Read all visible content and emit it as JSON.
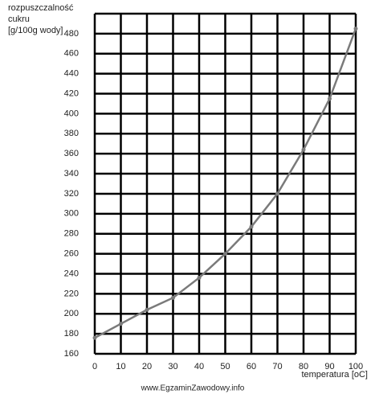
{
  "chart_data": {
    "type": "line",
    "ylabel": [
      "rozpuszczalność",
      "cukru",
      "[g/100g wody]"
    ],
    "xlabel": "temperatura [oC]",
    "watermark": "www.EgzaminZawodowy.info",
    "x": [
      0,
      10,
      20,
      30,
      40,
      50,
      60,
      70,
      80,
      90,
      100
    ],
    "series": [
      {
        "color": "#7a7a7a",
        "values": [
          176,
          190,
          204,
          216,
          236,
          260,
          287,
          320,
          364,
          415,
          485
        ]
      }
    ],
    "xlim": [
      0,
      100
    ],
    "xticks": [
      0,
      10,
      20,
      30,
      40,
      50,
      60,
      70,
      80,
      90,
      100
    ],
    "ylim": [
      160,
      500
    ],
    "yticks": [
      160,
      180,
      200,
      220,
      240,
      260,
      280,
      300,
      320,
      340,
      360,
      380,
      400,
      420,
      440,
      460,
      480
    ],
    "grid": true
  }
}
